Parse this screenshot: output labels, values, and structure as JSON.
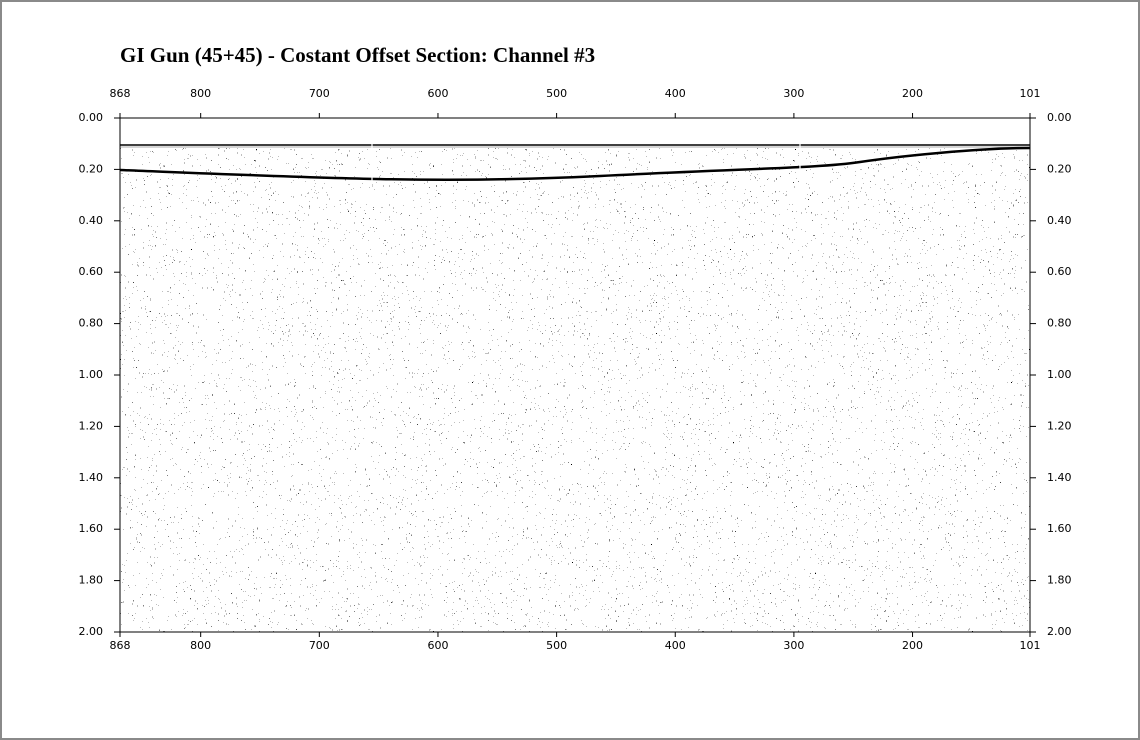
{
  "chart_data": {
    "type": "seismic",
    "title": "GI Gun (45+45) - Costant Offset Section: Channel #3",
    "xlim": [
      868,
      101
    ],
    "xticks": [
      868,
      800,
      700,
      600,
      500,
      400,
      300,
      200,
      101
    ],
    "ylim": [
      0,
      2
    ],
    "yticks": [
      {
        "value": 0,
        "label": "0.00"
      },
      {
        "value": 0.2,
        "label": "0.20"
      },
      {
        "value": 0.4,
        "label": "0.40"
      },
      {
        "value": 0.6,
        "label": "0.60"
      },
      {
        "value": 0.8,
        "label": "0.80"
      },
      {
        "value": 1,
        "label": "1.00"
      },
      {
        "value": 1.2,
        "label": "1.20"
      },
      {
        "value": 1.4,
        "label": "1.40"
      },
      {
        "value": 1.6,
        "label": "1.60"
      },
      {
        "value": 1.8,
        "label": "1.80"
      },
      {
        "value": 2,
        "label": "2.00"
      }
    ]
  }
}
